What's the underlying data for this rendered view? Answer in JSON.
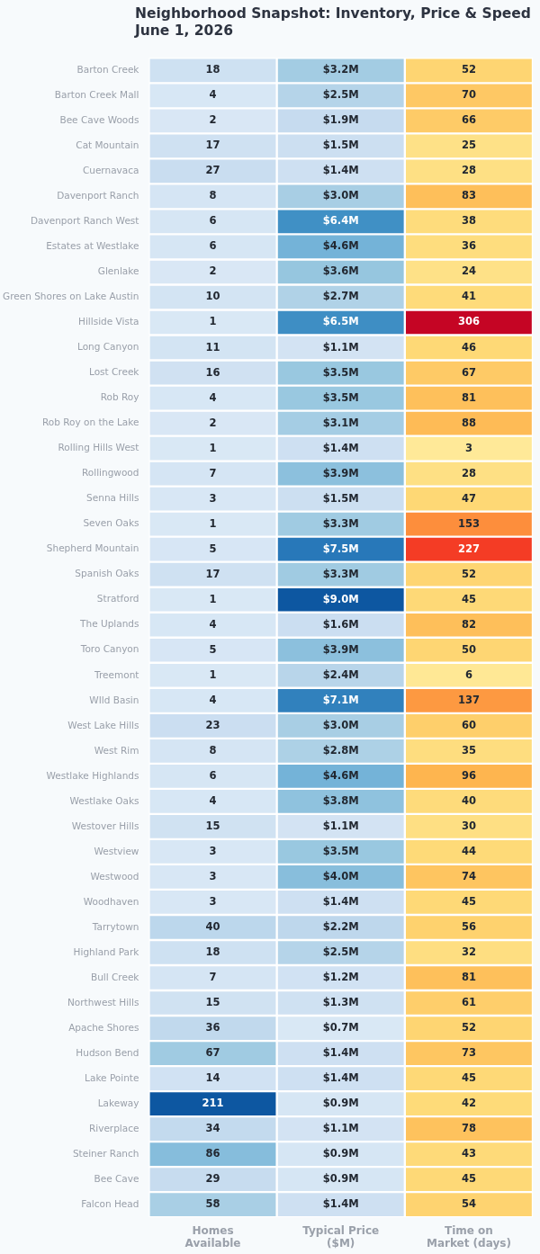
{
  "chart_data": {
    "type": "heatmap",
    "title": "Neighborhood Snapshot: Inventory, Price & Speed",
    "subtitle": "June 1, 2026",
    "categories": [
      "Homes Available",
      "Typical Price ($M)",
      "Time on Market (days)"
    ],
    "y_categories": [
      "Barton Creek",
      "Barton Creek Mall",
      "Bee Cave Woods",
      "Cat Mountain",
      "Cuernavaca",
      "Davenport Ranch",
      "Davenport Ranch West",
      "Estates at Westlake",
      "Glenlake",
      "Green Shores on Lake Austin",
      "Hillside Vista",
      "Long Canyon",
      "Lost Creek",
      "Rob Roy",
      "Rob Roy on the Lake",
      "Rolling Hills West",
      "Rollingwood",
      "Senna Hills",
      "Seven Oaks",
      "Shepherd Mountain",
      "Spanish Oaks",
      "Stratford",
      "The Uplands",
      "Toro Canyon",
      "Treemont",
      "WIld Basin",
      "West Lake Hills",
      "West Rim",
      "Westlake Highlands",
      "Westlake Oaks",
      "Westover Hills",
      "Westview",
      "Westwood",
      "Woodhaven",
      "Tarrytown",
      "Highland Park",
      "Bull Creek",
      "Northwest Hills",
      "Apache Shores",
      "Hudson Bend",
      "Lake Pointe",
      "Lakeway",
      "Riverplace",
      "Steiner Ranch",
      "Bee Cave",
      "Falcon Head"
    ],
    "cells": [
      [
        18,
        3.2,
        52
      ],
      [
        4,
        2.5,
        70
      ],
      [
        2,
        1.9,
        66
      ],
      [
        17,
        1.5,
        25
      ],
      [
        27,
        1.4,
        28
      ],
      [
        8,
        3.0,
        83
      ],
      [
        6,
        6.4,
        38
      ],
      [
        6,
        4.6,
        36
      ],
      [
        2,
        3.6,
        24
      ],
      [
        10,
        2.7,
        41
      ],
      [
        1,
        6.5,
        306
      ],
      [
        11,
        1.1,
        46
      ],
      [
        16,
        3.5,
        67
      ],
      [
        4,
        3.5,
        81
      ],
      [
        2,
        3.1,
        88
      ],
      [
        1,
        1.4,
        3
      ],
      [
        7,
        3.9,
        28
      ],
      [
        3,
        1.5,
        47
      ],
      [
        1,
        3.3,
        153
      ],
      [
        5,
        7.5,
        227
      ],
      [
        17,
        3.3,
        52
      ],
      [
        1,
        9.0,
        45
      ],
      [
        4,
        1.6,
        82
      ],
      [
        5,
        3.9,
        50
      ],
      [
        1,
        2.4,
        6
      ],
      [
        4,
        7.1,
        137
      ],
      [
        23,
        3.0,
        60
      ],
      [
        8,
        2.8,
        35
      ],
      [
        6,
        4.6,
        96
      ],
      [
        4,
        3.8,
        40
      ],
      [
        15,
        1.1,
        30
      ],
      [
        3,
        3.5,
        44
      ],
      [
        3,
        4.0,
        74
      ],
      [
        3,
        1.4,
        45
      ],
      [
        40,
        2.2,
        56
      ],
      [
        18,
        2.5,
        32
      ],
      [
        7,
        1.2,
        81
      ],
      [
        15,
        1.3,
        61
      ],
      [
        36,
        0.7,
        52
      ],
      [
        67,
        1.4,
        73
      ],
      [
        14,
        1.4,
        45
      ],
      [
        211,
        0.9,
        42
      ],
      [
        34,
        1.1,
        78
      ],
      [
        86,
        0.9,
        43
      ],
      [
        29,
        0.9,
        45
      ],
      [
        58,
        1.4,
        54
      ]
    ],
    "cell_labels": [
      [
        "18",
        "$3.2M",
        "52"
      ],
      [
        "4",
        "$2.5M",
        "70"
      ],
      [
        "2",
        "$1.9M",
        "66"
      ],
      [
        "17",
        "$1.5M",
        "25"
      ],
      [
        "27",
        "$1.4M",
        "28"
      ],
      [
        "8",
        "$3.0M",
        "83"
      ],
      [
        "6",
        "$6.4M",
        "38"
      ],
      [
        "6",
        "$4.6M",
        "36"
      ],
      [
        "2",
        "$3.6M",
        "24"
      ],
      [
        "10",
        "$2.7M",
        "41"
      ],
      [
        "1",
        "$6.5M",
        "306"
      ],
      [
        "11",
        "$1.1M",
        "46"
      ],
      [
        "16",
        "$3.5M",
        "67"
      ],
      [
        "4",
        "$3.5M",
        "81"
      ],
      [
        "2",
        "$3.1M",
        "88"
      ],
      [
        "1",
        "$1.4M",
        "3"
      ],
      [
        "7",
        "$3.9M",
        "28"
      ],
      [
        "3",
        "$1.5M",
        "47"
      ],
      [
        "1",
        "$3.3M",
        "153"
      ],
      [
        "5",
        "$7.5M",
        "227"
      ],
      [
        "17",
        "$3.3M",
        "52"
      ],
      [
        "1",
        "$9.0M",
        "45"
      ],
      [
        "4",
        "$1.6M",
        "82"
      ],
      [
        "5",
        "$3.9M",
        "50"
      ],
      [
        "1",
        "$2.4M",
        "6"
      ],
      [
        "4",
        "$7.1M",
        "137"
      ],
      [
        "23",
        "$3.0M",
        "60"
      ],
      [
        "8",
        "$2.8M",
        "35"
      ],
      [
        "6",
        "$4.6M",
        "96"
      ],
      [
        "4",
        "$3.8M",
        "40"
      ],
      [
        "15",
        "$1.1M",
        "30"
      ],
      [
        "3",
        "$3.5M",
        "44"
      ],
      [
        "3",
        "$4.0M",
        "74"
      ],
      [
        "3",
        "$1.4M",
        "45"
      ],
      [
        "40",
        "$2.2M",
        "56"
      ],
      [
        "18",
        "$2.5M",
        "32"
      ],
      [
        "7",
        "$1.2M",
        "81"
      ],
      [
        "15",
        "$1.3M",
        "61"
      ],
      [
        "36",
        "$0.7M",
        "52"
      ],
      [
        "67",
        "$1.4M",
        "73"
      ],
      [
        "14",
        "$1.4M",
        "45"
      ],
      [
        "211",
        "$0.9M",
        "42"
      ],
      [
        "34",
        "$1.1M",
        "78"
      ],
      [
        "86",
        "$0.9M",
        "43"
      ],
      [
        "29",
        "$0.9M",
        "45"
      ],
      [
        "58",
        "$1.4M",
        "54"
      ]
    ]
  }
}
